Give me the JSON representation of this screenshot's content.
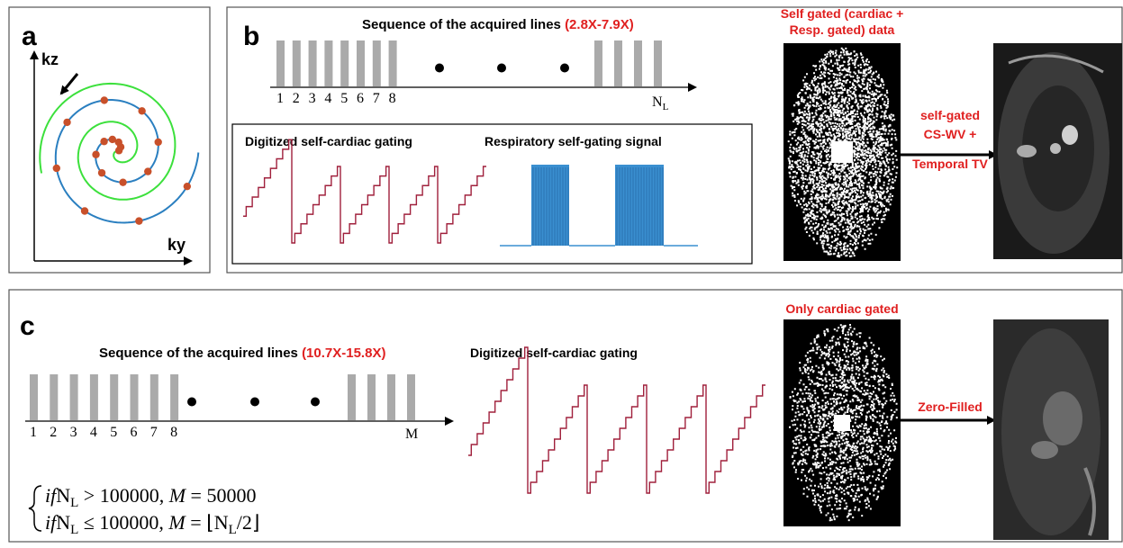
{
  "panel_a": {
    "label": "a",
    "y_axis": "kz",
    "x_axis": "ky"
  },
  "panel_b": {
    "label": "b",
    "sequence_title": "Sequence of the acquired lines ",
    "acceleration": "(2.8X-7.9X)",
    "line_numbers": [
      "1",
      "2",
      "3",
      "4",
      "5",
      "6",
      "7",
      "8"
    ],
    "last_line": {
      "base": "N",
      "sub": "L"
    },
    "cardiac_gating_title": "Digitized self-cardiac gating",
    "respiratory_title": "Respiratory self-gating signal",
    "image_title": [
      "Self gated (cardiac +",
      "Resp. gated) data"
    ],
    "method": [
      "self-gated",
      "CS-WV +",
      "Temporal TV"
    ]
  },
  "panel_c": {
    "label": "c",
    "sequence_title": "Sequence of the acquired lines ",
    "acceleration": "(10.7X-15.8X)",
    "line_numbers": [
      "1",
      "2",
      "3",
      "4",
      "5",
      "6",
      "7",
      "8"
    ],
    "last_line": "M",
    "cardiac_gating_title": "Digitized self-cardiac gating",
    "formulas": [
      [
        {
          "text": "if",
          "style": "italic"
        },
        {
          "text": "N",
          "style": "normal"
        },
        {
          "text": "L",
          "style": "sub"
        },
        {
          "text": " > 100000, ",
          "style": "normal"
        },
        {
          "text": "M",
          "style": "italic"
        },
        {
          "text": " = 50000",
          "style": "normal"
        }
      ],
      [
        {
          "text": "if",
          "style": "italic"
        },
        {
          "text": "N",
          "style": "normal"
        },
        {
          "text": "L",
          "style": "sub"
        },
        {
          "text": " ≤ 100000, ",
          "style": "normal"
        },
        {
          "text": "M",
          "style": "italic"
        },
        {
          "text": " = ⌊N",
          "style": "normal"
        },
        {
          "text": "L",
          "style": "sub"
        },
        {
          "text": "/2⌋",
          "style": "normal"
        }
      ]
    ],
    "image_title": "Only cardiac gated",
    "method": "Zero-Filled"
  }
}
